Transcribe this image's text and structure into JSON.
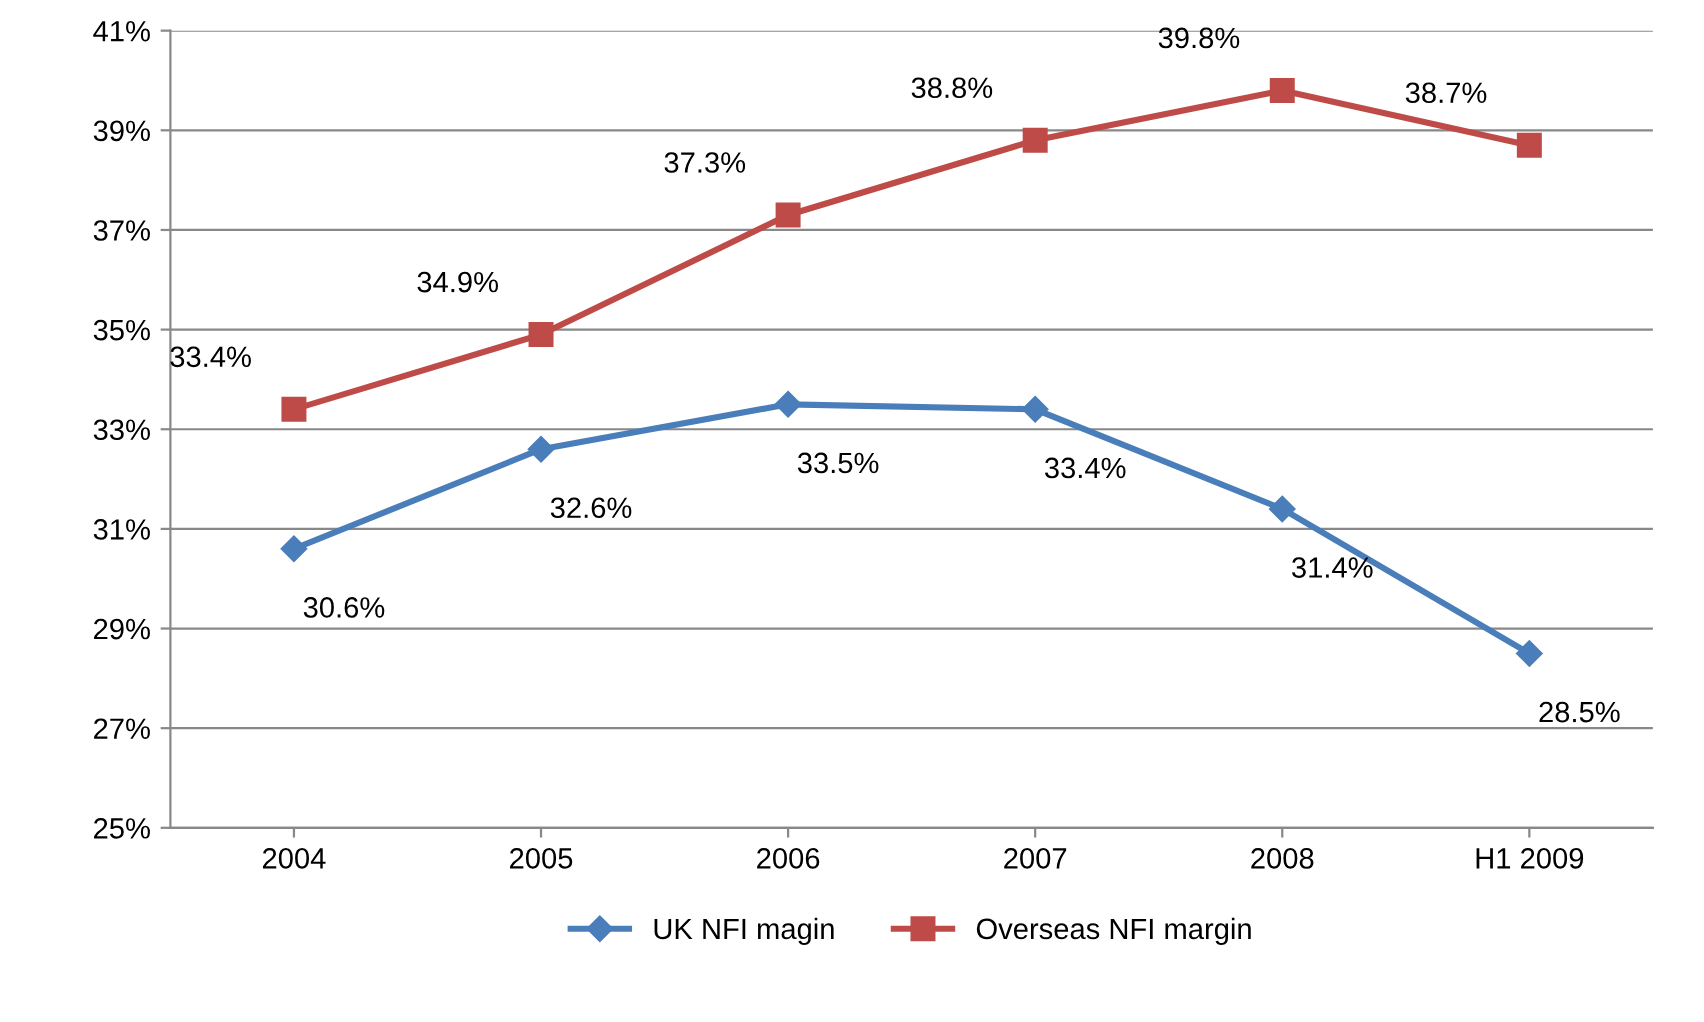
{
  "chart_data": {
    "type": "line",
    "categories": [
      "2004",
      "2005",
      "2006",
      "2007",
      "2008",
      "H1 2009"
    ],
    "series": [
      {
        "name": "UK NFI magin",
        "color": "#4a7ebb",
        "marker": "diamond",
        "values": [
          30.6,
          32.6,
          33.5,
          33.4,
          31.4,
          28.5
        ],
        "value_labels": [
          "30.6%",
          "32.6%",
          "33.5%",
          "33.4%",
          "31.4%",
          "28.5%"
        ]
      },
      {
        "name": "Overseas NFI margin",
        "color": "#be4b48",
        "marker": "square",
        "values": [
          33.4,
          34.9,
          37.3,
          38.8,
          39.8,
          38.7
        ],
        "value_labels": [
          "33.4%",
          "34.9%",
          "37.3%",
          "38.8%",
          "39.8%",
          "38.7%"
        ]
      }
    ],
    "ylim": [
      25,
      41
    ],
    "yticks": [
      {
        "value": 25,
        "label": "25%"
      },
      {
        "value": 27,
        "label": "27%"
      },
      {
        "value": 29,
        "label": "29%"
      },
      {
        "value": 31,
        "label": "31%"
      },
      {
        "value": 33,
        "label": "33%"
      },
      {
        "value": 35,
        "label": "35%"
      },
      {
        "value": 37,
        "label": "37%"
      },
      {
        "value": 39,
        "label": "39%"
      },
      {
        "value": 41,
        "label": "41%"
      }
    ],
    "grid": "y",
    "legend": "bottom",
    "line_style": "solid"
  }
}
